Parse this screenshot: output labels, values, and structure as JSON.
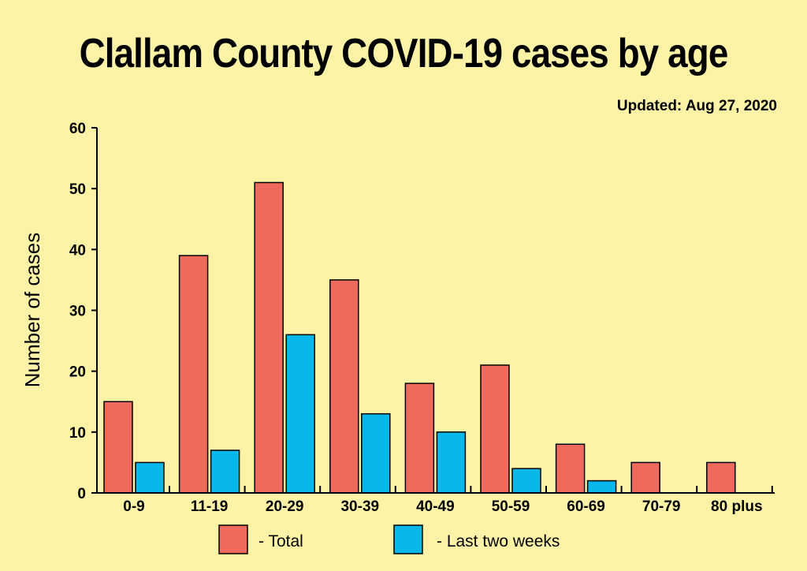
{
  "colors": {
    "background": "#fdf3a6",
    "total": "#ee6a5c",
    "recent": "#08b7ea"
  },
  "chart_data": {
    "type": "bar",
    "title": "Clallam County COVID-19 cases by age",
    "subtitle": "Updated: Aug 27, 2020",
    "ylabel": "Number of cases",
    "xlabel": "",
    "ylim": [
      0,
      60
    ],
    "yticks": [
      0,
      10,
      20,
      30,
      40,
      50,
      60
    ],
    "grid": false,
    "legend": "bottom",
    "categories": [
      "0-9",
      "11-19",
      "20-29",
      "30-39",
      "40-49",
      "50-59",
      "60-69",
      "70-79",
      "80 plus"
    ],
    "series": [
      {
        "name": "- Total",
        "values": [
          15,
          39,
          51,
          35,
          18,
          21,
          8,
          5,
          5
        ]
      },
      {
        "name": "- Last two weeks",
        "values": [
          5,
          7,
          26,
          13,
          10,
          4,
          2,
          0,
          0
        ]
      }
    ]
  }
}
